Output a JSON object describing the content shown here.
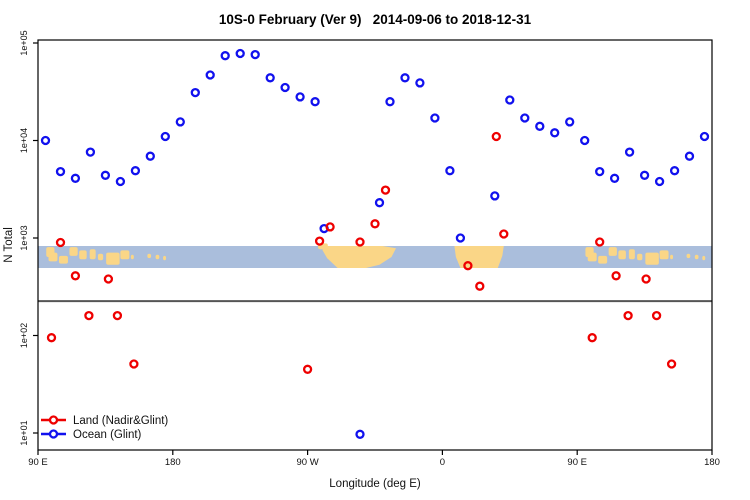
{
  "title": "10S-0 February (Ver 9)   2014-09-06 to 2018-12-31",
  "axes": {
    "y_label": "N Total",
    "x_label": "Longitude (deg E)"
  },
  "legend": [
    {
      "label": "Land (Nadir&Glint)",
      "color": "#ee0000"
    },
    {
      "label": "Ocean (Glint)",
      "color": "#1111ee"
    }
  ],
  "colors": {
    "land_series": "#ee0000",
    "ocean_series": "#1111ee",
    "map_ocean_band": "#aabedc",
    "map_land": "#fad687",
    "threshold_line": "#555555",
    "axis": "#000000"
  },
  "map": {
    "description": "world map strip for latitude band 10S-0",
    "threshold_n": 225,
    "band_n_range": [
      560,
      1000
    ],
    "indonesia_patches": [
      [
        95.5,
        101,
        0.05,
        0.5
      ],
      [
        97,
        103,
        0.3,
        0.7
      ],
      [
        104,
        110,
        0.45,
        0.8
      ],
      [
        111,
        116.5,
        0.05,
        0.45
      ],
      [
        117.5,
        122.5,
        0.2,
        0.6
      ],
      [
        124.5,
        128.5,
        0.15,
        0.6
      ],
      [
        130,
        133.5,
        0.35,
        0.65
      ],
      [
        135.5,
        144.5,
        0.3,
        0.85
      ],
      [
        145,
        151,
        0.2,
        0.6
      ],
      [
        152,
        154,
        0.4,
        0.6
      ],
      [
        163,
        165.5,
        0.35,
        0.55
      ],
      [
        168.5,
        171,
        0.4,
        0.6
      ],
      [
        173.5,
        175.5,
        0.45,
        0.65
      ]
    ],
    "south_america_bump": [
      277,
      283.5,
      -0.12,
      0.15
    ],
    "south_america_polygon": [
      [
        280,
        0
      ],
      [
        320,
        0
      ],
      [
        329,
        0.1
      ],
      [
        326,
        0.5
      ],
      [
        318,
        0.85
      ],
      [
        309,
        1
      ],
      [
        290,
        1
      ],
      [
        283,
        0.55
      ],
      [
        280,
        0.2
      ]
    ],
    "africa_polygon": [
      [
        368,
        0
      ],
      [
        401,
        0
      ],
      [
        400,
        0.45
      ],
      [
        397,
        1
      ],
      [
        372,
        1
      ],
      [
        369,
        0.5
      ]
    ]
  },
  "chart_data": {
    "type": "scatter",
    "title": "10S-0 February (Ver 9)   2014-09-06 to 2018-12-31",
    "xlabel": "Longitude (deg E)",
    "ylabel": "N Total",
    "x_ticks": [
      {
        "lon": 90,
        "label": "90 E"
      },
      {
        "lon": 180,
        "label": "180"
      },
      {
        "lon": 270,
        "label": "90 W"
      },
      {
        "lon": 360,
        "label": "0"
      },
      {
        "lon": 450,
        "label": "90 E"
      },
      {
        "lon": 540,
        "label": "180"
      }
    ],
    "xlim_unwrapped_deg": [
      90,
      540
    ],
    "y_scale": "log",
    "y_ticks": [
      "1e+05",
      "1e+04",
      "1e+03",
      "1e+02",
      "1e+01"
    ],
    "ylim": [
      10,
      100000
    ],
    "grid": false,
    "legend_position": "bottom-left",
    "series": [
      {
        "name": "Land (Nadir&Glint)",
        "color": "#ee0000",
        "marker": "open-circle",
        "points": [
          [
            99,
            95
          ],
          [
            105,
            900
          ],
          [
            115,
            410
          ],
          [
            124,
            160
          ],
          [
            137,
            380
          ],
          [
            143,
            160
          ],
          [
            154,
            51
          ],
          [
            270,
            45
          ],
          [
            278,
            930
          ],
          [
            285,
            1300
          ],
          [
            305,
            910
          ],
          [
            315,
            1400
          ],
          [
            322,
            3100
          ],
          [
            377,
            520
          ],
          [
            385,
            320
          ],
          [
            396,
            11000
          ],
          [
            401,
            1100
          ],
          [
            460,
            95
          ],
          [
            465,
            910
          ],
          [
            476,
            410
          ],
          [
            484,
            160
          ],
          [
            496,
            380
          ],
          [
            503,
            160
          ],
          [
            513,
            51
          ]
        ]
      },
      {
        "name": "Ocean (Glint)",
        "color": "#1111ee",
        "marker": "open-circle",
        "points": [
          [
            95,
            10000
          ],
          [
            105,
            4800
          ],
          [
            115,
            4100
          ],
          [
            125,
            7600
          ],
          [
            135,
            4400
          ],
          [
            145,
            3800
          ],
          [
            155,
            4900
          ],
          [
            165,
            6900
          ],
          [
            175,
            11000
          ],
          [
            185,
            15500
          ],
          [
            195,
            31000
          ],
          [
            205,
            47000
          ],
          [
            215,
            74000
          ],
          [
            225,
            78000
          ],
          [
            235,
            76000
          ],
          [
            245,
            44000
          ],
          [
            255,
            35000
          ],
          [
            265,
            28000
          ],
          [
            275,
            25000
          ],
          [
            281,
            1250
          ],
          [
            305,
            9.7
          ],
          [
            318,
            2300
          ],
          [
            325,
            25000
          ],
          [
            335,
            44000
          ],
          [
            345,
            39000
          ],
          [
            355,
            17000
          ],
          [
            365,
            4900
          ],
          [
            372,
            1000
          ],
          [
            395,
            2700
          ],
          [
            405,
            26000
          ],
          [
            415,
            17000
          ],
          [
            425,
            14000
          ],
          [
            435,
            12000
          ],
          [
            445,
            15500
          ],
          [
            455,
            10000
          ],
          [
            465,
            4800
          ],
          [
            475,
            4100
          ],
          [
            485,
            7600
          ],
          [
            495,
            4400
          ],
          [
            505,
            3800
          ],
          [
            515,
            4900
          ],
          [
            525,
            6900
          ],
          [
            535,
            11000
          ]
        ]
      }
    ]
  }
}
